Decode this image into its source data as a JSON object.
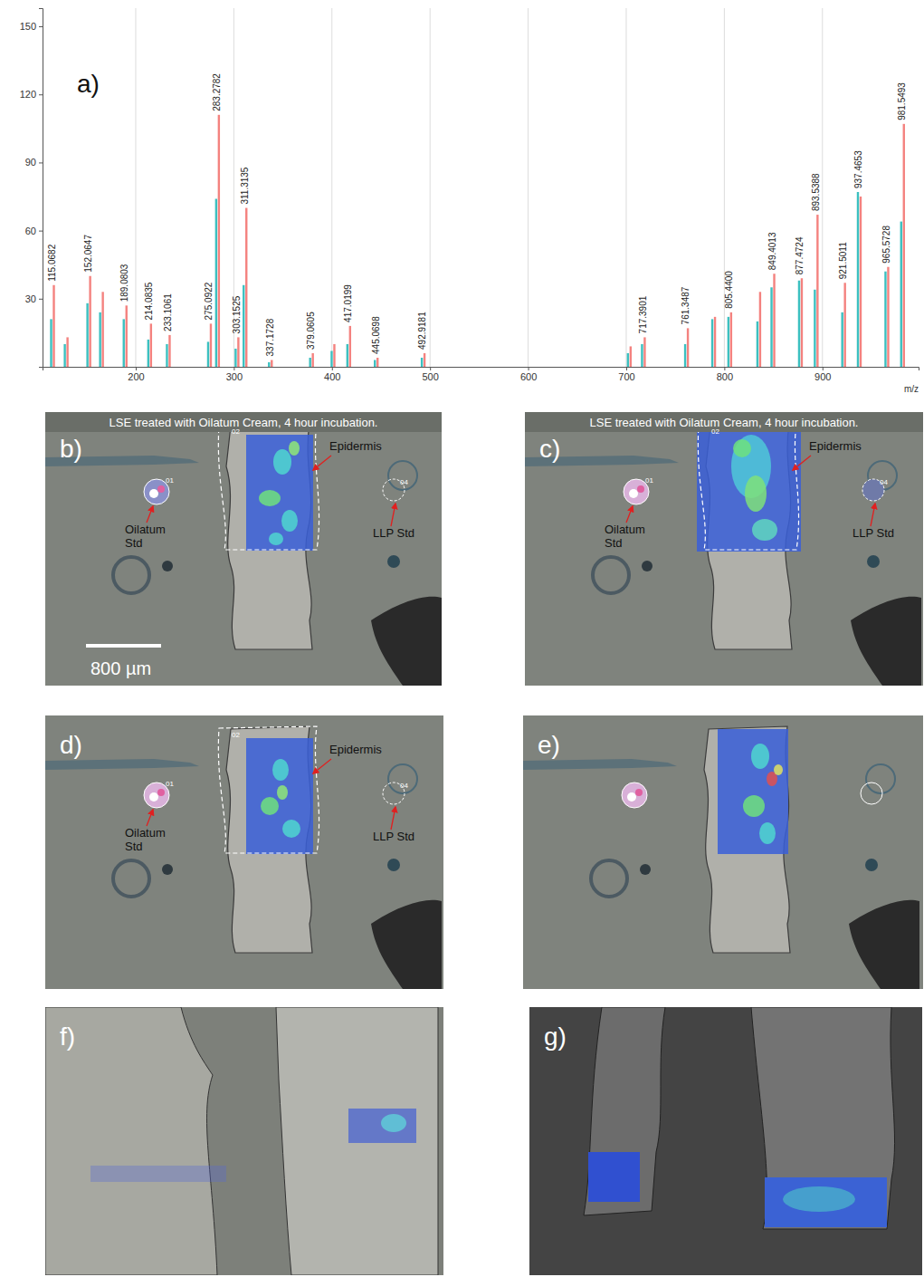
{
  "chart_data": {
    "type": "bar",
    "panel_label": "a)",
    "x_label": "m/z",
    "x": [
      115.0682,
      129,
      152.0647,
      165,
      189.0803,
      214.0835,
      233.1061,
      275.0922,
      283.2782,
      303.1525,
      311.3135,
      337.1728,
      379.0605,
      401,
      417.0199,
      445.0698,
      492.9181,
      703,
      717.3901,
      761.3487,
      789,
      805.44,
      835,
      849.4013,
      877.4724,
      893.5388,
      921.5011,
      937.4653,
      965.5728,
      981.5493
    ],
    "series": [
      {
        "color": "#f4827f",
        "values": [
          36,
          13,
          40,
          33,
          27,
          19,
          14,
          19,
          111,
          13,
          70,
          3,
          6,
          10,
          18,
          4,
          6,
          9,
          13,
          17,
          22,
          24,
          33,
          41,
          39,
          67,
          37,
          75,
          44,
          107
        ]
      },
      {
        "color": "#3cc0c0",
        "values": [
          21,
          10,
          28,
          24,
          21,
          12,
          10,
          11,
          74,
          8,
          36,
          2,
          4,
          7,
          10,
          3,
          4,
          6,
          10,
          10,
          21,
          22,
          20,
          35,
          38,
          34,
          24,
          77,
          42,
          64
        ]
      }
    ],
    "peak_labels": [
      "115.0682",
      null,
      "152.0647",
      null,
      "189.0803",
      "214.0835",
      "233.1061",
      "275.0922",
      "283.2782",
      "303.1525",
      "311.3135",
      "337.1728",
      "379.0605",
      null,
      "417.0199",
      "445.0698",
      "492.9181",
      null,
      "717.3901",
      "761.3487",
      null,
      "805.4400",
      null,
      "849.4013",
      "877.4724",
      "893.5388",
      "921.5011",
      "937.4653",
      "965.5728",
      "981.5493"
    ],
    "xlim": [
      105,
      998
    ],
    "ylim": [
      0,
      158
    ],
    "xticks": [
      200,
      300,
      400,
      500,
      600,
      700,
      800,
      900
    ],
    "yticks": [
      30,
      60,
      90,
      120,
      150
    ],
    "grid": "x"
  },
  "image_panels": [
    {
      "letter": "b)",
      "header": "LSE treated with Oilatum Cream, 4 hour incubation.",
      "labels": [
        "Oilatum Std",
        "Epidermis",
        "LLP Std"
      ],
      "roi_labels": [
        "01",
        "02",
        "04"
      ],
      "scale_bar": "800 µm"
    },
    {
      "letter": "c)",
      "header": "LSE treated with Oilatum Cream, 4 hour incubation.",
      "labels": [
        "Oilatum Std",
        "Epidermis",
        "LLP Std"
      ],
      "roi_labels": [
        "01",
        "02",
        "04"
      ]
    },
    {
      "letter": "d)",
      "labels": [
        "Oilatum Std",
        "Epidermis",
        "LLP Std"
      ],
      "roi_labels": [
        "01",
        "02",
        "04"
      ]
    },
    {
      "letter": "e)"
    },
    {
      "letter": "f)"
    },
    {
      "letter": "g)"
    }
  ]
}
